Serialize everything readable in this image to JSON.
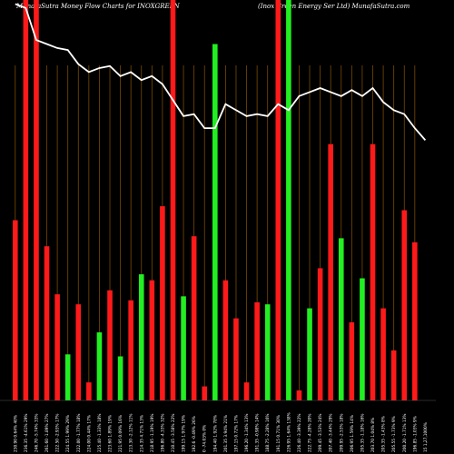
{
  "chart_data": {
    "type": "bar",
    "title_left": "MunafaSutra  Money Flow  Charts for INOXGREEN",
    "title_right": "(Inox Green Energy Ser Ltd) MunafaSutra.com",
    "ylim": [
      0,
      100
    ],
    "grid": "vertical",
    "bars": [
      {
        "label": "230.90 0.64% 40%",
        "value": 45,
        "color": "red"
      },
      {
        "label": "236.35 -4.61% 29%",
        "value": 100,
        "color": "red"
      },
      {
        "label": "246.70 -5.74% 33%",
        "value": 100,
        "color": "red"
      },
      {
        "label": "261.60 -1.89% 27%",
        "value": 38.5,
        "color": "red"
      },
      {
        "label": "222.50 -2.93% 17%",
        "value": 26.5,
        "color": "red"
      },
      {
        "label": "224.55 1.99% 29%",
        "value": 11.5,
        "color": "green"
      },
      {
        "label": "222.00 -1.77% 18%",
        "value": 24,
        "color": "red"
      },
      {
        "label": "224.00 0.44% 17%",
        "value": 4.5,
        "color": "red"
      },
      {
        "label": "225.40 -1.33% 18%",
        "value": 17,
        "color": "green"
      },
      {
        "label": "223.60 1.89% 19%",
        "value": 27.5,
        "color": "red"
      },
      {
        "label": "221.95 0.09% 16%",
        "value": 11,
        "color": "green"
      },
      {
        "label": "213.30 -2.12% 11%",
        "value": 25,
        "color": "red"
      },
      {
        "label": "214.35 4.71% 13%",
        "value": 31.5,
        "color": "green"
      },
      {
        "label": "218.95 -1.19% 19%",
        "value": 30,
        "color": "red"
      },
      {
        "label": "196.80 -4.33% 32%",
        "value": 48.5,
        "color": "red"
      },
      {
        "label": "210.45 -3.58% 22%",
        "value": 100,
        "color": "red"
      },
      {
        "label": "199.15 1.97% 19%",
        "value": 26,
        "color": "green"
      },
      {
        "label": "192.6 -0.49% 26%",
        "value": 41,
        "color": "red"
      },
      {
        "label": "0 -74.03% 0%",
        "value": 3.5,
        "color": "red"
      },
      {
        "label": "194.40 1.92% 78%",
        "value": 89,
        "color": "green"
      },
      {
        "label": "201.35 3.94% 21%",
        "value": 30,
        "color": "red"
      },
      {
        "label": "197.15 0.72% 17%",
        "value": 20.5,
        "color": "red"
      },
      {
        "label": "196.20 -1.34% 13%",
        "value": 4.5,
        "color": "red"
      },
      {
        "label": "191.35 -0.98% 14%",
        "value": 24.5,
        "color": "red"
      },
      {
        "label": "188.75 -2.28% 16%",
        "value": 24,
        "color": "green"
      },
      {
        "label": "191.15 0.71% 30%",
        "value": 100,
        "color": "red"
      },
      {
        "label": "226.95 1.64% 138%",
        "value": 100,
        "color": "green"
      },
      {
        "label": "226.40 -3.39% 22%",
        "value": 2.5,
        "color": "red"
      },
      {
        "label": "222.75 -4.28% 20%",
        "value": 23,
        "color": "green"
      },
      {
        "label": "209.45 -3.53% 24%",
        "value": 33,
        "color": "red"
      },
      {
        "label": "207.40 -3.44% 29%",
        "value": 64,
        "color": "red"
      },
      {
        "label": "209.95 -2.53% 18%",
        "value": 40.5,
        "color": "green"
      },
      {
        "label": "206.95 1.59% 14%",
        "value": 19.5,
        "color": "red"
      },
      {
        "label": "205.35 -1.18% 16%",
        "value": 30.5,
        "color": "green"
      },
      {
        "label": "203.70 1.04% 8%",
        "value": 64,
        "color": "red"
      },
      {
        "label": "205.35 -1.43% 8%",
        "value": 23,
        "color": "red"
      },
      {
        "label": "205.55 -1.73% 9%",
        "value": 12.5,
        "color": "red"
      },
      {
        "label": "200.20 -1.71% 13%",
        "value": 47.5,
        "color": "red"
      },
      {
        "label": "196.85 -1.03% 9%",
        "value": 39.5,
        "color": "red"
      }
    ],
    "price_line": [
      99,
      98,
      90,
      89,
      88,
      87.5,
      84,
      82,
      83,
      83.5,
      81,
      82,
      80,
      81,
      79,
      75,
      71,
      71.5,
      68,
      68,
      74,
      72.5,
      71,
      71.5,
      71,
      74,
      72.5,
      76,
      77,
      78,
      77,
      76,
      77.5,
      76,
      78,
      74.5,
      72.5,
      71.5,
      68,
      65
    ],
    "x_extra_label": "15 1,27,1000%"
  }
}
